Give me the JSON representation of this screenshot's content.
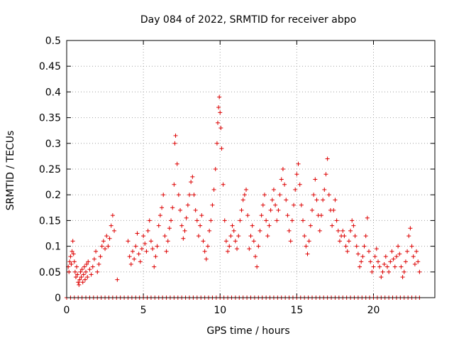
{
  "chart_data": {
    "type": "scatter",
    "title": "Day 084 of 2022, SRMTID for receiver abpo",
    "xlabel": "GPS time / hours",
    "ylabel": "SRMTID / TECUs",
    "xlim": [
      0,
      24
    ],
    "ylim": [
      0,
      0.5
    ],
    "xticks": [
      0,
      5,
      10,
      15,
      20
    ],
    "xtick_labels": [
      "0",
      "5",
      "10",
      "15",
      "20"
    ],
    "yticks": [
      0,
      0.05,
      0.1,
      0.15,
      0.2,
      0.25,
      0.3,
      0.35,
      0.4,
      0.45,
      0.5
    ],
    "ytick_labels": [
      "0",
      "0.05",
      "0.1",
      "0.15",
      "0.2",
      "0.25",
      "0.3",
      "0.35",
      "0.4",
      "0.45",
      "0.5"
    ],
    "grid": true,
    "marker": "+",
    "marker_color": "#dd0000",
    "series": [
      {
        "name": "SRMTID",
        "points": [
          [
            0.1,
            0.06
          ],
          [
            0.15,
            0.05
          ],
          [
            0.2,
            0.07
          ],
          [
            0.25,
            0.08
          ],
          [
            0.3,
            0.065
          ],
          [
            0.35,
            0.09
          ],
          [
            0.4,
            0.11
          ],
          [
            0.45,
            0.085
          ],
          [
            0.5,
            0.07
          ],
          [
            0.55,
            0.05
          ],
          [
            0.6,
            0.04
          ],
          [
            0.65,
            0.06
          ],
          [
            0.7,
            0.045
          ],
          [
            0.75,
            0.03
          ],
          [
            0.8,
            0.025
          ],
          [
            0.85,
            0.035
          ],
          [
            0.9,
            0.05
          ],
          [
            0.95,
            0.04
          ],
          [
            1.0,
            0.055
          ],
          [
            1.05,
            0.03
          ],
          [
            1.1,
            0.045
          ],
          [
            1.15,
            0.06
          ],
          [
            1.2,
            0.035
          ],
          [
            1.25,
            0.05
          ],
          [
            1.3,
            0.065
          ],
          [
            1.35,
            0.04
          ],
          [
            1.4,
            0.07
          ],
          [
            1.5,
            0.055
          ],
          [
            1.6,
            0.045
          ],
          [
            1.7,
            0.06
          ],
          [
            1.8,
            0.075
          ],
          [
            1.9,
            0.09
          ],
          [
            2.0,
            0.05
          ],
          [
            2.1,
            0.065
          ],
          [
            2.2,
            0.08
          ],
          [
            2.3,
            0.1
          ],
          [
            2.4,
            0.11
          ],
          [
            2.5,
            0.095
          ],
          [
            2.6,
            0.12
          ],
          [
            2.7,
            0.1
          ],
          [
            2.8,
            0.115
          ],
          [
            2.9,
            0.14
          ],
          [
            3.0,
            0.16
          ],
          [
            3.1,
            0.13
          ],
          [
            3.3,
            0.035
          ],
          [
            4.0,
            0.11
          ],
          [
            4.1,
            0.08
          ],
          [
            4.2,
            0.065
          ],
          [
            4.3,
            0.09
          ],
          [
            4.4,
            0.075
          ],
          [
            4.5,
            0.1
          ],
          [
            4.6,
            0.125
          ],
          [
            4.7,
            0.085
          ],
          [
            4.8,
            0.07
          ],
          [
            4.9,
            0.095
          ],
          [
            5.0,
            0.12
          ],
          [
            5.1,
            0.105
          ],
          [
            5.2,
            0.09
          ],
          [
            5.3,
            0.13
          ],
          [
            5.4,
            0.15
          ],
          [
            5.5,
            0.11
          ],
          [
            5.6,
            0.095
          ],
          [
            5.7,
            0.06
          ],
          [
            5.8,
            0.08
          ],
          [
            5.9,
            0.1
          ],
          [
            6.0,
            0.14
          ],
          [
            6.1,
            0.16
          ],
          [
            6.2,
            0.175
          ],
          [
            6.3,
            0.2
          ],
          [
            6.4,
            0.12
          ],
          [
            6.5,
            0.09
          ],
          [
            6.6,
            0.11
          ],
          [
            6.7,
            0.135
          ],
          [
            6.8,
            0.15
          ],
          [
            6.9,
            0.175
          ],
          [
            7.0,
            0.22
          ],
          [
            7.05,
            0.3
          ],
          [
            7.1,
            0.315
          ],
          [
            7.2,
            0.26
          ],
          [
            7.3,
            0.2
          ],
          [
            7.4,
            0.17
          ],
          [
            7.5,
            0.14
          ],
          [
            7.6,
            0.115
          ],
          [
            7.7,
            0.13
          ],
          [
            7.8,
            0.155
          ],
          [
            7.9,
            0.18
          ],
          [
            8.0,
            0.2
          ],
          [
            8.1,
            0.225
          ],
          [
            8.2,
            0.235
          ],
          [
            8.3,
            0.2
          ],
          [
            8.4,
            0.17
          ],
          [
            8.5,
            0.15
          ],
          [
            8.6,
            0.12
          ],
          [
            8.7,
            0.14
          ],
          [
            8.8,
            0.16
          ],
          [
            8.9,
            0.11
          ],
          [
            9.0,
            0.09
          ],
          [
            9.1,
            0.075
          ],
          [
            9.2,
            0.1
          ],
          [
            9.3,
            0.13
          ],
          [
            9.4,
            0.15
          ],
          [
            9.5,
            0.18
          ],
          [
            9.6,
            0.21
          ],
          [
            9.7,
            0.25
          ],
          [
            9.8,
            0.3
          ],
          [
            9.85,
            0.34
          ],
          [
            9.9,
            0.37
          ],
          [
            9.95,
            0.39
          ],
          [
            10.0,
            0.36
          ],
          [
            10.05,
            0.33
          ],
          [
            10.1,
            0.29
          ],
          [
            10.2,
            0.22
          ],
          [
            10.3,
            0.15
          ],
          [
            10.4,
            0.11
          ],
          [
            10.5,
            0.09
          ],
          [
            10.6,
            0.1
          ],
          [
            10.7,
            0.12
          ],
          [
            10.8,
            0.14
          ],
          [
            10.9,
            0.13
          ],
          [
            11.0,
            0.11
          ],
          [
            11.1,
            0.095
          ],
          [
            11.2,
            0.12
          ],
          [
            11.3,
            0.15
          ],
          [
            11.4,
            0.17
          ],
          [
            11.5,
            0.19
          ],
          [
            11.6,
            0.2
          ],
          [
            11.7,
            0.21
          ],
          [
            11.8,
            0.16
          ],
          [
            11.9,
            0.095
          ],
          [
            12.0,
            0.12
          ],
          [
            12.1,
            0.14
          ],
          [
            12.2,
            0.11
          ],
          [
            12.3,
            0.08
          ],
          [
            12.4,
            0.06
          ],
          [
            12.5,
            0.1
          ],
          [
            12.6,
            0.13
          ],
          [
            12.7,
            0.16
          ],
          [
            12.8,
            0.18
          ],
          [
            12.9,
            0.2
          ],
          [
            13.0,
            0.15
          ],
          [
            13.1,
            0.12
          ],
          [
            13.2,
            0.14
          ],
          [
            13.3,
            0.17
          ],
          [
            13.4,
            0.19
          ],
          [
            13.5,
            0.21
          ],
          [
            13.6,
            0.18
          ],
          [
            13.7,
            0.15
          ],
          [
            13.8,
            0.17
          ],
          [
            13.9,
            0.2
          ],
          [
            14.0,
            0.23
          ],
          [
            14.1,
            0.25
          ],
          [
            14.2,
            0.22
          ],
          [
            14.3,
            0.19
          ],
          [
            14.4,
            0.16
          ],
          [
            14.5,
            0.13
          ],
          [
            14.6,
            0.11
          ],
          [
            14.7,
            0.15
          ],
          [
            14.8,
            0.18
          ],
          [
            14.9,
            0.21
          ],
          [
            15.0,
            0.24
          ],
          [
            15.1,
            0.26
          ],
          [
            15.2,
            0.22
          ],
          [
            15.3,
            0.18
          ],
          [
            15.4,
            0.15
          ],
          [
            15.5,
            0.12
          ],
          [
            15.6,
            0.1
          ],
          [
            15.7,
            0.085
          ],
          [
            15.8,
            0.11
          ],
          [
            15.9,
            0.14
          ],
          [
            16.0,
            0.17
          ],
          [
            16.1,
            0.2
          ],
          [
            16.2,
            0.23
          ],
          [
            16.3,
            0.19
          ],
          [
            16.4,
            0.16
          ],
          [
            16.5,
            0.13
          ],
          [
            16.6,
            0.16
          ],
          [
            16.7,
            0.19
          ],
          [
            16.8,
            0.21
          ],
          [
            16.9,
            0.24
          ],
          [
            17.0,
            0.27
          ],
          [
            17.1,
            0.2
          ],
          [
            17.2,
            0.17
          ],
          [
            17.3,
            0.14
          ],
          [
            17.4,
            0.17
          ],
          [
            17.5,
            0.19
          ],
          [
            17.6,
            0.15
          ],
          [
            17.7,
            0.13
          ],
          [
            17.8,
            0.11
          ],
          [
            17.9,
            0.12
          ],
          [
            18.0,
            0.13
          ],
          [
            18.1,
            0.12
          ],
          [
            18.2,
            0.1
          ],
          [
            18.3,
            0.09
          ],
          [
            18.4,
            0.11
          ],
          [
            18.5,
            0.13
          ],
          [
            18.6,
            0.15
          ],
          [
            18.7,
            0.14
          ],
          [
            18.8,
            0.12
          ],
          [
            18.9,
            0.1
          ],
          [
            19.0,
            0.085
          ],
          [
            19.1,
            0.06
          ],
          [
            19.2,
            0.07
          ],
          [
            19.3,
            0.08
          ],
          [
            19.4,
            0.1
          ],
          [
            19.5,
            0.12
          ],
          [
            19.6,
            0.155
          ],
          [
            19.7,
            0.09
          ],
          [
            19.8,
            0.07
          ],
          [
            19.9,
            0.05
          ],
          [
            20.0,
            0.06
          ],
          [
            20.1,
            0.08
          ],
          [
            20.2,
            0.095
          ],
          [
            20.3,
            0.07
          ],
          [
            20.4,
            0.06
          ],
          [
            20.5,
            0.04
          ],
          [
            20.6,
            0.05
          ],
          [
            20.7,
            0.065
          ],
          [
            20.8,
            0.08
          ],
          [
            20.9,
            0.06
          ],
          [
            21.0,
            0.05
          ],
          [
            21.1,
            0.07
          ],
          [
            21.2,
            0.09
          ],
          [
            21.3,
            0.075
          ],
          [
            21.4,
            0.06
          ],
          [
            21.5,
            0.08
          ],
          [
            21.6,
            0.1
          ],
          [
            21.7,
            0.085
          ],
          [
            21.8,
            0.06
          ],
          [
            21.9,
            0.04
          ],
          [
            22.0,
            0.05
          ],
          [
            22.1,
            0.07
          ],
          [
            22.2,
            0.09
          ],
          [
            22.3,
            0.12
          ],
          [
            22.4,
            0.135
          ],
          [
            22.5,
            0.1
          ],
          [
            22.6,
            0.08
          ],
          [
            22.7,
            0.065
          ],
          [
            22.8,
            0.09
          ],
          [
            22.9,
            0.07
          ],
          [
            23.0,
            0.05
          ]
        ]
      },
      {
        "name": "zero-baseline",
        "from": 0.0,
        "to": 23.0,
        "step": 0.25,
        "value": 0
      }
    ]
  }
}
